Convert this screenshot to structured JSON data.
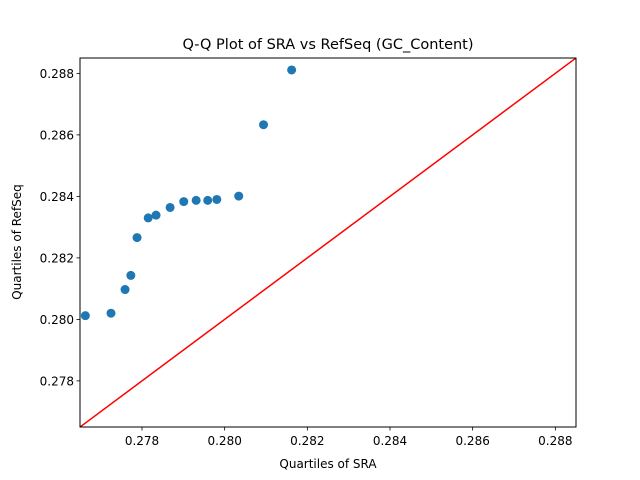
{
  "chart_data": {
    "type": "scatter",
    "title": "Q-Q Plot of SRA vs RefSeq (GC_Content)",
    "xlabel": "Quartiles of SRA",
    "ylabel": "Quartiles of RefSeq",
    "xlim": [
      0.2765,
      0.2885
    ],
    "ylim": [
      0.2765,
      0.2885
    ],
    "xticks": [
      "0.278",
      "0.280",
      "0.282",
      "0.284",
      "0.286",
      "0.288"
    ],
    "yticks": [
      "0.278",
      "0.280",
      "0.282",
      "0.284",
      "0.286",
      "0.288"
    ],
    "grid": false,
    "legend": "none",
    "point_color": "#1f77b4",
    "line_color": "#ff0000",
    "reference_line": {
      "x": [
        0.2765,
        0.2885
      ],
      "y": [
        0.2765,
        0.2885
      ]
    },
    "points": [
      {
        "x": 0.27663,
        "y": 0.28012
      },
      {
        "x": 0.27725,
        "y": 0.2802
      },
      {
        "x": 0.27759,
        "y": 0.28097
      },
      {
        "x": 0.27773,
        "y": 0.28143
      },
      {
        "x": 0.27788,
        "y": 0.28266
      },
      {
        "x": 0.27815,
        "y": 0.2833
      },
      {
        "x": 0.27834,
        "y": 0.28339
      },
      {
        "x": 0.27868,
        "y": 0.28364
      },
      {
        "x": 0.27901,
        "y": 0.28383
      },
      {
        "x": 0.27931,
        "y": 0.28387
      },
      {
        "x": 0.27959,
        "y": 0.28387
      },
      {
        "x": 0.27981,
        "y": 0.2839
      },
      {
        "x": 0.28034,
        "y": 0.28401
      },
      {
        "x": 0.28094,
        "y": 0.28633
      },
      {
        "x": 0.28162,
        "y": 0.28811
      }
    ]
  }
}
